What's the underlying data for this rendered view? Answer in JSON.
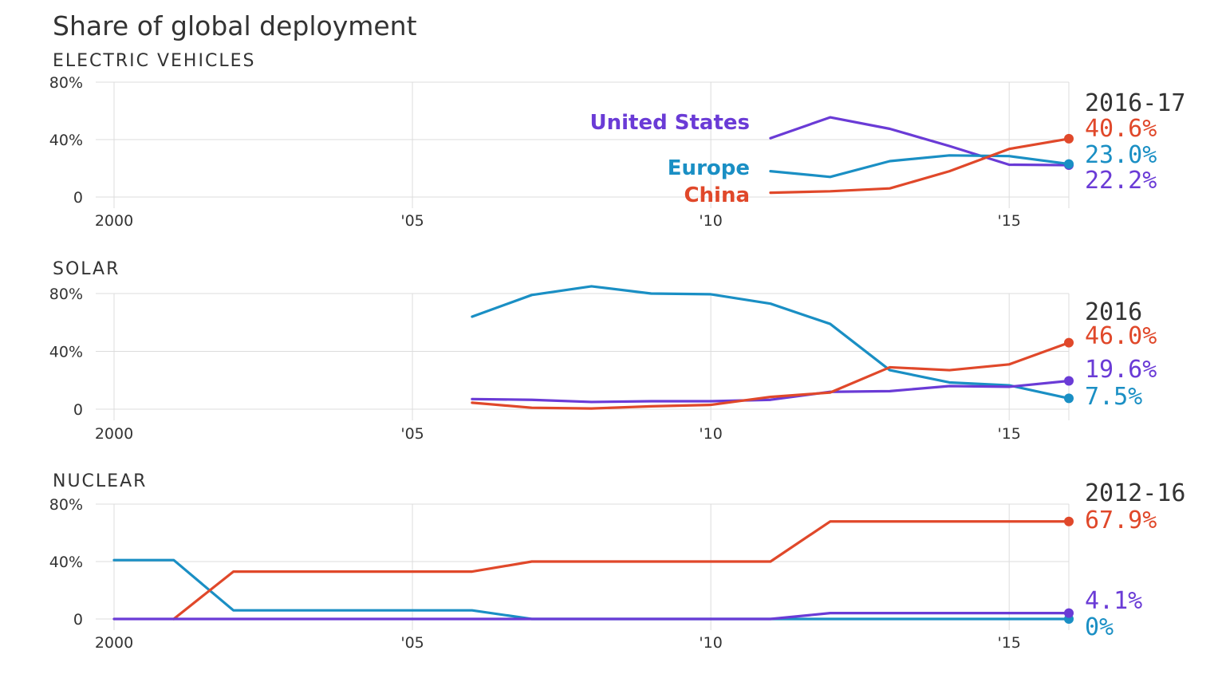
{
  "title": "Share of global deployment",
  "colors": {
    "United States": "#6a3bd6",
    "Europe": "#1a8fc4",
    "China": "#e0482a",
    "text_dark": "#333333",
    "grid": "#dcdcdc"
  },
  "chart_data": [
    {
      "type": "line",
      "title": "ELECTRIC VEHICLES",
      "period_label": "2016-17",
      "x_ticks": [
        2000,
        2005,
        2010,
        2015
      ],
      "x_tick_labels": [
        "2000",
        "'05",
        "'10",
        "'15"
      ],
      "y_ticks": [
        0,
        40,
        80
      ],
      "y_tick_labels": [
        "0",
        "40%",
        "80%"
      ],
      "xlim": [
        2000,
        2016
      ],
      "ylim": [
        0,
        80
      ],
      "series": [
        {
          "name": "United States",
          "x": [
            2011,
            2012,
            2013,
            2014,
            2015,
            2016
          ],
          "values": [
            41,
            55.5,
            47.5,
            35.5,
            22.5,
            22.2
          ]
        },
        {
          "name": "Europe",
          "x": [
            2011,
            2012,
            2013,
            2014,
            2015,
            2016
          ],
          "values": [
            18,
            14,
            25,
            29,
            28.5,
            23.0
          ]
        },
        {
          "name": "China",
          "x": [
            2011,
            2012,
            2013,
            2014,
            2015,
            2016
          ],
          "values": [
            3,
            4,
            6,
            18,
            33.5,
            40.6
          ]
        }
      ],
      "end_labels": [
        {
          "series": "China",
          "text": "40.6%"
        },
        {
          "series": "Europe",
          "text": "23.0%"
        },
        {
          "series": "United States",
          "text": "22.2%"
        }
      ],
      "series_labels": [
        {
          "series": "United States",
          "text": "United States"
        },
        {
          "series": "Europe",
          "text": "Europe"
        },
        {
          "series": "China",
          "text": "China"
        }
      ]
    },
    {
      "type": "line",
      "title": "SOLAR",
      "period_label": "2016",
      "x_ticks": [
        2000,
        2005,
        2010,
        2015
      ],
      "x_tick_labels": [
        "2000",
        "'05",
        "'10",
        "'15"
      ],
      "y_ticks": [
        0,
        40,
        80
      ],
      "y_tick_labels": [
        "0",
        "40%",
        "80%"
      ],
      "xlim": [
        2000,
        2016
      ],
      "ylim": [
        0,
        80
      ],
      "series": [
        {
          "name": "Europe",
          "x": [
            2006,
            2007,
            2008,
            2009,
            2010,
            2011,
            2012,
            2013,
            2014,
            2015,
            2016
          ],
          "values": [
            64,
            79,
            85,
            80,
            79.5,
            73,
            59,
            27,
            18.5,
            16.5,
            7.5
          ]
        },
        {
          "name": "United States",
          "x": [
            2006,
            2007,
            2008,
            2009,
            2010,
            2011,
            2012,
            2013,
            2014,
            2015,
            2016
          ],
          "values": [
            7,
            6.5,
            5,
            5.5,
            5.5,
            6.5,
            12,
            12.5,
            16,
            15.5,
            19.6
          ]
        },
        {
          "name": "China",
          "x": [
            2006,
            2007,
            2008,
            2009,
            2010,
            2011,
            2012,
            2013,
            2014,
            2015,
            2016
          ],
          "values": [
            4.5,
            1,
            0.5,
            2,
            3,
            8.5,
            11.5,
            29,
            27,
            31,
            46.0
          ]
        }
      ],
      "end_labels": [
        {
          "series": "China",
          "text": "46.0%"
        },
        {
          "series": "United States",
          "text": "19.6%"
        },
        {
          "series": "Europe",
          "text": "7.5%"
        }
      ]
    },
    {
      "type": "line",
      "title": "NUCLEAR",
      "period_label": "2012-16",
      "x_ticks": [
        2000,
        2005,
        2010,
        2015
      ],
      "x_tick_labels": [
        "2000",
        "'05",
        "'10",
        "'15"
      ],
      "y_ticks": [
        0,
        40,
        80
      ],
      "y_tick_labels": [
        "0",
        "40%",
        "80%"
      ],
      "xlim": [
        2000,
        2016
      ],
      "ylim": [
        0,
        80
      ],
      "series": [
        {
          "name": "Europe",
          "x": [
            2000,
            2001,
            2002,
            2003,
            2004,
            2005,
            2006,
            2007,
            2008,
            2009,
            2010,
            2011,
            2012,
            2013,
            2014,
            2015,
            2016
          ],
          "values": [
            41,
            41,
            6,
            6,
            6,
            6,
            6,
            0,
            0,
            0,
            0,
            0,
            0,
            0,
            0,
            0,
            0
          ]
        },
        {
          "name": "China",
          "x": [
            2001,
            2002,
            2003,
            2004,
            2005,
            2006,
            2007,
            2008,
            2009,
            2010,
            2011,
            2012,
            2013,
            2014,
            2015,
            2016
          ],
          "values": [
            0,
            33,
            33,
            33,
            33,
            33,
            40,
            40,
            40,
            40,
            40,
            67.9,
            67.9,
            67.9,
            67.9,
            67.9
          ]
        },
        {
          "name": "United States",
          "x": [
            2000,
            2001,
            2002,
            2003,
            2004,
            2005,
            2006,
            2007,
            2008,
            2009,
            2010,
            2011,
            2012,
            2013,
            2014,
            2015,
            2016
          ],
          "values": [
            0,
            0,
            0,
            0,
            0,
            0,
            0,
            0,
            0,
            0,
            0,
            0,
            4.1,
            4.1,
            4.1,
            4.1,
            4.1
          ]
        }
      ],
      "end_labels": [
        {
          "series": "China",
          "text": "67.9%"
        },
        {
          "series": "United States",
          "text": "4.1%"
        },
        {
          "series": "Europe",
          "text": "0%"
        }
      ]
    }
  ]
}
